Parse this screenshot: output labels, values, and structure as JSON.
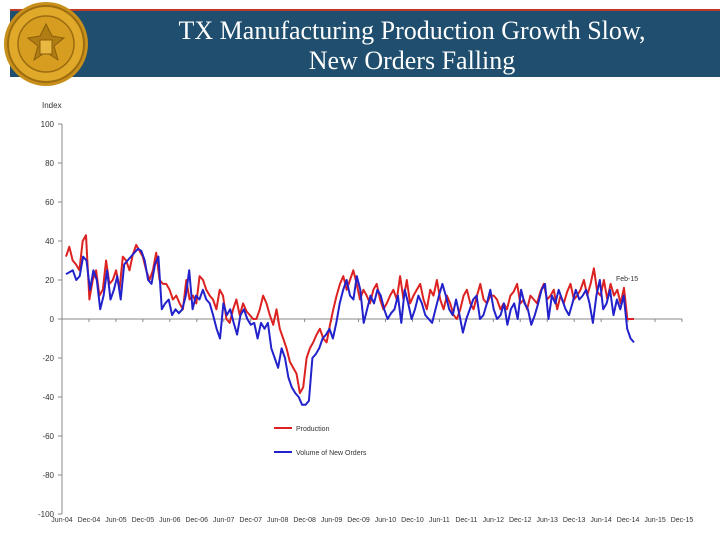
{
  "slide": {
    "title_line1": "TX Manufacturing Production Growth Slow,",
    "title_line2": "New Orders Falling",
    "colors": {
      "header_band": "#1f4e6e",
      "accent_line": "#c0392b",
      "seal": "#d4a017"
    }
  },
  "chart_data": {
    "type": "line",
    "ylabel": "Index",
    "ylim": [
      -100,
      100
    ],
    "yticks": [
      100,
      80,
      60,
      40,
      20,
      0,
      -20,
      -40,
      -60,
      -80,
      -100
    ],
    "x_tick_labels": [
      "Jun-04",
      "Dec-04",
      "Jun-05",
      "Dec-05",
      "Jun-06",
      "Dec-06",
      "Jun-07",
      "Dec-07",
      "Jun-08",
      "Dec-08",
      "Jun-09",
      "Dec-09",
      "Jun-10",
      "Dec-10",
      "Jun-11",
      "Dec-11",
      "Jun-12",
      "Dec-12",
      "Jun-13",
      "Dec-13",
      "Jun-14",
      "Dec-14",
      "Jun-15",
      "Dec-15"
    ],
    "annotation": "Feb-15",
    "legend_position": "lower-center",
    "series": [
      {
        "name": "Production",
        "color": "#dd2222",
        "values": [
          32,
          37,
          30,
          28,
          25,
          40,
          43,
          10,
          20,
          25,
          12,
          15,
          30,
          18,
          20,
          25,
          15,
          32,
          30,
          25,
          33,
          38,
          35,
          32,
          25,
          20,
          25,
          34,
          20,
          18,
          18,
          15,
          10,
          12,
          8,
          5,
          20,
          10,
          12,
          8,
          22,
          20,
          15,
          12,
          10,
          5,
          15,
          12,
          0,
          -2,
          5,
          10,
          2,
          8,
          4,
          2,
          0,
          0,
          5,
          12,
          8,
          2,
          -3,
          5,
          -5,
          -10,
          -15,
          -22,
          -25,
          -28,
          -38,
          -35,
          -20,
          -15,
          -12,
          -8,
          -5,
          -10,
          -12,
          -3,
          5,
          12,
          18,
          22,
          15,
          20,
          25,
          18,
          10,
          15,
          12,
          8,
          15,
          18,
          10,
          5,
          8,
          12,
          15,
          10,
          22,
          10,
          20,
          8,
          12,
          15,
          18,
          10,
          5,
          15,
          12,
          20,
          10,
          5,
          12,
          8,
          2,
          0,
          5,
          12,
          15,
          8,
          5,
          12,
          18,
          10,
          8,
          12,
          12,
          10,
          5,
          8,
          5,
          12,
          14,
          18,
          8,
          10,
          5,
          12,
          10,
          8,
          14,
          18,
          10,
          12,
          15,
          5,
          12,
          8,
          14,
          18,
          10,
          12,
          15,
          20,
          12,
          18,
          26,
          14,
          12,
          20,
          10,
          18,
          12,
          15,
          8,
          16,
          0,
          0,
          0
        ]
      },
      {
        "name": "Volume of New Orders",
        "color": "#2222cc",
        "values": [
          23,
          24,
          25,
          20,
          22,
          32,
          30,
          15,
          25,
          20,
          5,
          12,
          25,
          10,
          15,
          22,
          10,
          28,
          30,
          32,
          34,
          36,
          35,
          30,
          20,
          18,
          28,
          32,
          5,
          8,
          10,
          2,
          5,
          3,
          5,
          12,
          25,
          5,
          12,
          10,
          15,
          10,
          8,
          2,
          -5,
          -10,
          8,
          2,
          5,
          -2,
          -8,
          2,
          5,
          0,
          -3,
          -2,
          -10,
          -2,
          -5,
          -2,
          -15,
          -20,
          -25,
          -15,
          -20,
          -30,
          -35,
          -38,
          -40,
          -44,
          -44,
          -42,
          -20,
          -18,
          -15,
          -10,
          -8,
          -5,
          -10,
          -2,
          8,
          15,
          20,
          12,
          10,
          22,
          15,
          -2,
          5,
          12,
          8,
          15,
          12,
          5,
          0,
          3,
          5,
          12,
          -2,
          15,
          8,
          0,
          5,
          12,
          8,
          2,
          0,
          -2,
          5,
          12,
          18,
          12,
          5,
          2,
          10,
          2,
          -7,
          0,
          5,
          10,
          12,
          0,
          2,
          8,
          15,
          5,
          0,
          2,
          8,
          -3,
          5,
          8,
          0,
          15,
          8,
          5,
          -3,
          2,
          8,
          15,
          18,
          0,
          12,
          8,
          15,
          10,
          5,
          2,
          8,
          15,
          10,
          12,
          15,
          8,
          -2,
          12,
          20,
          5,
          8,
          15,
          2,
          10,
          5,
          12,
          -5,
          -10,
          -12
        ]
      }
    ]
  }
}
